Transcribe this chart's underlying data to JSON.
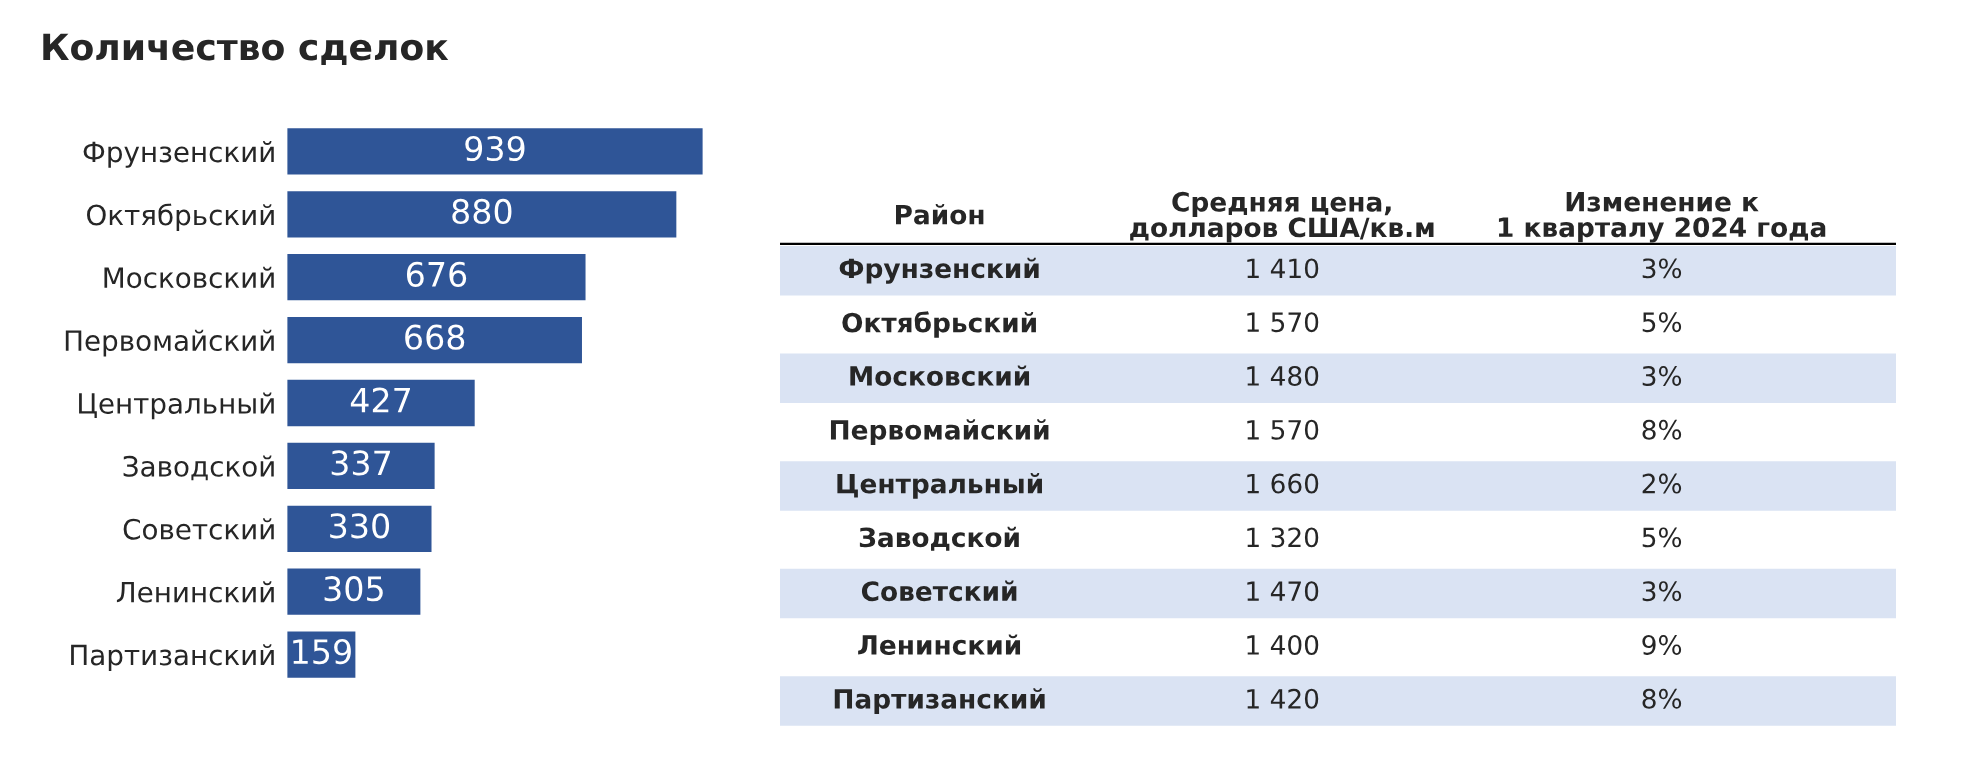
{
  "chart_data": [
    {
      "type": "bar",
      "orientation": "horizontal",
      "title": "Количество сделок",
      "categories": [
        "Фрунзенский",
        "Октябрьский",
        "Московский",
        "Первомайский",
        "Центральный",
        "Заводской",
        "Советский",
        "Ленинский",
        "Партизанский"
      ],
      "values": [
        939,
        880,
        676,
        668,
        427,
        337,
        330,
        305,
        159
      ],
      "color": "#2f5597",
      "data_labels": true,
      "tick_labels": "y"
    },
    {
      "type": "other",
      "ylabel": "Район",
      "categories": [
        "Средняя цена,\nдолларов США/кв.м",
        "Изменение к\n1 кварталу 2024 года"
      ],
      "y_categories": [
        "Фрунзенский",
        "Октябрьский",
        "Московский",
        "Первомайский",
        "Центральный",
        "Заводской",
        "Советский",
        "Ленинский",
        "Партизанский"
      ],
      "cells": [
        [
          "1 410",
          "3%"
        ],
        [
          "1 570",
          "5%"
        ],
        [
          "1 480",
          "3%"
        ],
        [
          "1 570",
          "8%"
        ],
        [
          "1 660",
          "2%"
        ],
        [
          "1 320",
          "5%"
        ],
        [
          "1 470",
          "3%"
        ],
        [
          "1 400",
          "9%"
        ],
        [
          "1 420",
          "8%"
        ]
      ],
      "colors": [
        "#dae3f3",
        null,
        "#dae3f3",
        null,
        "#dae3f3",
        null,
        "#dae3f3",
        null,
        "#dae3f3"
      ]
    }
  ]
}
